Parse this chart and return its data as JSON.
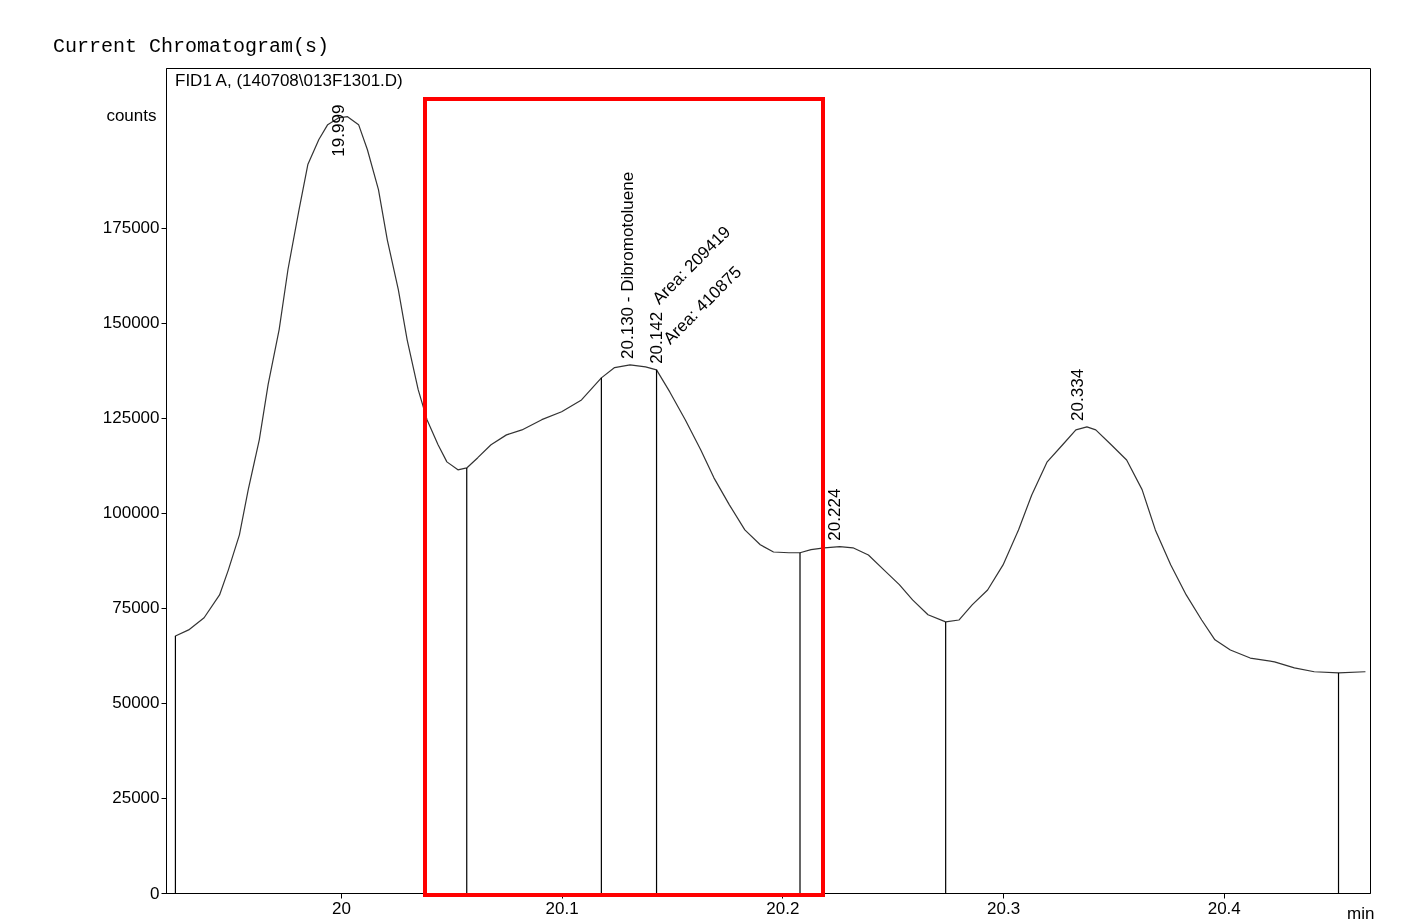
{
  "chart_data": {
    "type": "line",
    "title": "Current Chromatogram(s)",
    "subtitle": "FID1 A, (140708\\013F1301.D)",
    "xlabel": "min",
    "ylabel": "counts",
    "xlim": [
      19.923,
      20.464
    ],
    "ylim": [
      0,
      217000
    ],
    "xticks": [
      20,
      20.1,
      20.2,
      20.3,
      20.4
    ],
    "yticks": [
      0,
      25000,
      50000,
      75000,
      100000,
      125000,
      150000,
      175000
    ],
    "grid": false,
    "series": [
      {
        "color": "#333333",
        "x": [
          19.925,
          19.931,
          19.938,
          19.945,
          19.949,
          19.954,
          19.958,
          19.963,
          19.967,
          19.972,
          19.976,
          19.981,
          19.985,
          19.99,
          19.994,
          19.999,
          20.003,
          20.008,
          20.012,
          20.017,
          20.021,
          20.026,
          20.03,
          20.035,
          20.039,
          20.044,
          20.048,
          20.053,
          20.057,
          20.062,
          20.068,
          20.075,
          20.082,
          20.091,
          20.1,
          20.109,
          20.118,
          20.124,
          20.131,
          20.138,
          20.143,
          20.149,
          20.156,
          20.163,
          20.169,
          20.176,
          20.183,
          20.19,
          20.196,
          20.203,
          20.208,
          20.213,
          20.219,
          20.226,
          20.232,
          20.239,
          20.246,
          20.253,
          20.259,
          20.266,
          20.274,
          20.28,
          20.286,
          20.293,
          20.3,
          20.307,
          20.313,
          20.32,
          20.327,
          20.333,
          20.338,
          20.342,
          20.349,
          20.356,
          20.363,
          20.369,
          20.376,
          20.383,
          20.39,
          20.396,
          20.403,
          20.412,
          20.423,
          20.432,
          20.441,
          20.452,
          20.464
        ],
        "values": [
          67600,
          69200,
          72400,
          78400,
          85000,
          94200,
          106100,
          119200,
          133700,
          148200,
          164000,
          179700,
          191600,
          198200,
          202100,
          203900,
          204200,
          202100,
          195500,
          185000,
          171800,
          158700,
          145500,
          132400,
          124500,
          117900,
          113400,
          111300,
          111800,
          114500,
          117900,
          120500,
          121800,
          124500,
          126600,
          129700,
          135500,
          138200,
          138900,
          138400,
          137600,
          131800,
          124500,
          116600,
          109200,
          102100,
          95500,
          91600,
          89700,
          89500,
          89500,
          90300,
          90800,
          91100,
          90800,
          88900,
          85000,
          81100,
          77100,
          73200,
          71300,
          71800,
          75800,
          79700,
          86300,
          95500,
          104700,
          113400,
          117900,
          121800,
          122600,
          121800,
          117900,
          113900,
          106100,
          95500,
          86300,
          78400,
          71800,
          66600,
          63900,
          61800,
          60800,
          59200,
          58200,
          57900,
          58200
        ]
      },
      {
        "type": "bar",
        "color": "#000000",
        "x": [
          19.925,
          20.057,
          20.118,
          20.143,
          20.208,
          20.274,
          20.452
        ],
        "values": [
          67600,
          111800,
          135500,
          137600,
          89500,
          71300,
          57900
        ]
      }
    ],
    "annotations": [
      {
        "text": "19.999",
        "x": 19.999,
        "y": 204200
      },
      {
        "text": "20.130 -  Dibromotoluene",
        "x": 20.13,
        "y": 138900
      },
      {
        "text": "20.142",
        "x": 20.143,
        "y": 137600
      },
      {
        "text": "20.224",
        "x": 20.224,
        "y": 91100
      },
      {
        "text": "20.334",
        "x": 20.334,
        "y": 122600
      },
      "Area: 209419",
      "Area: 410875"
    ]
  }
}
